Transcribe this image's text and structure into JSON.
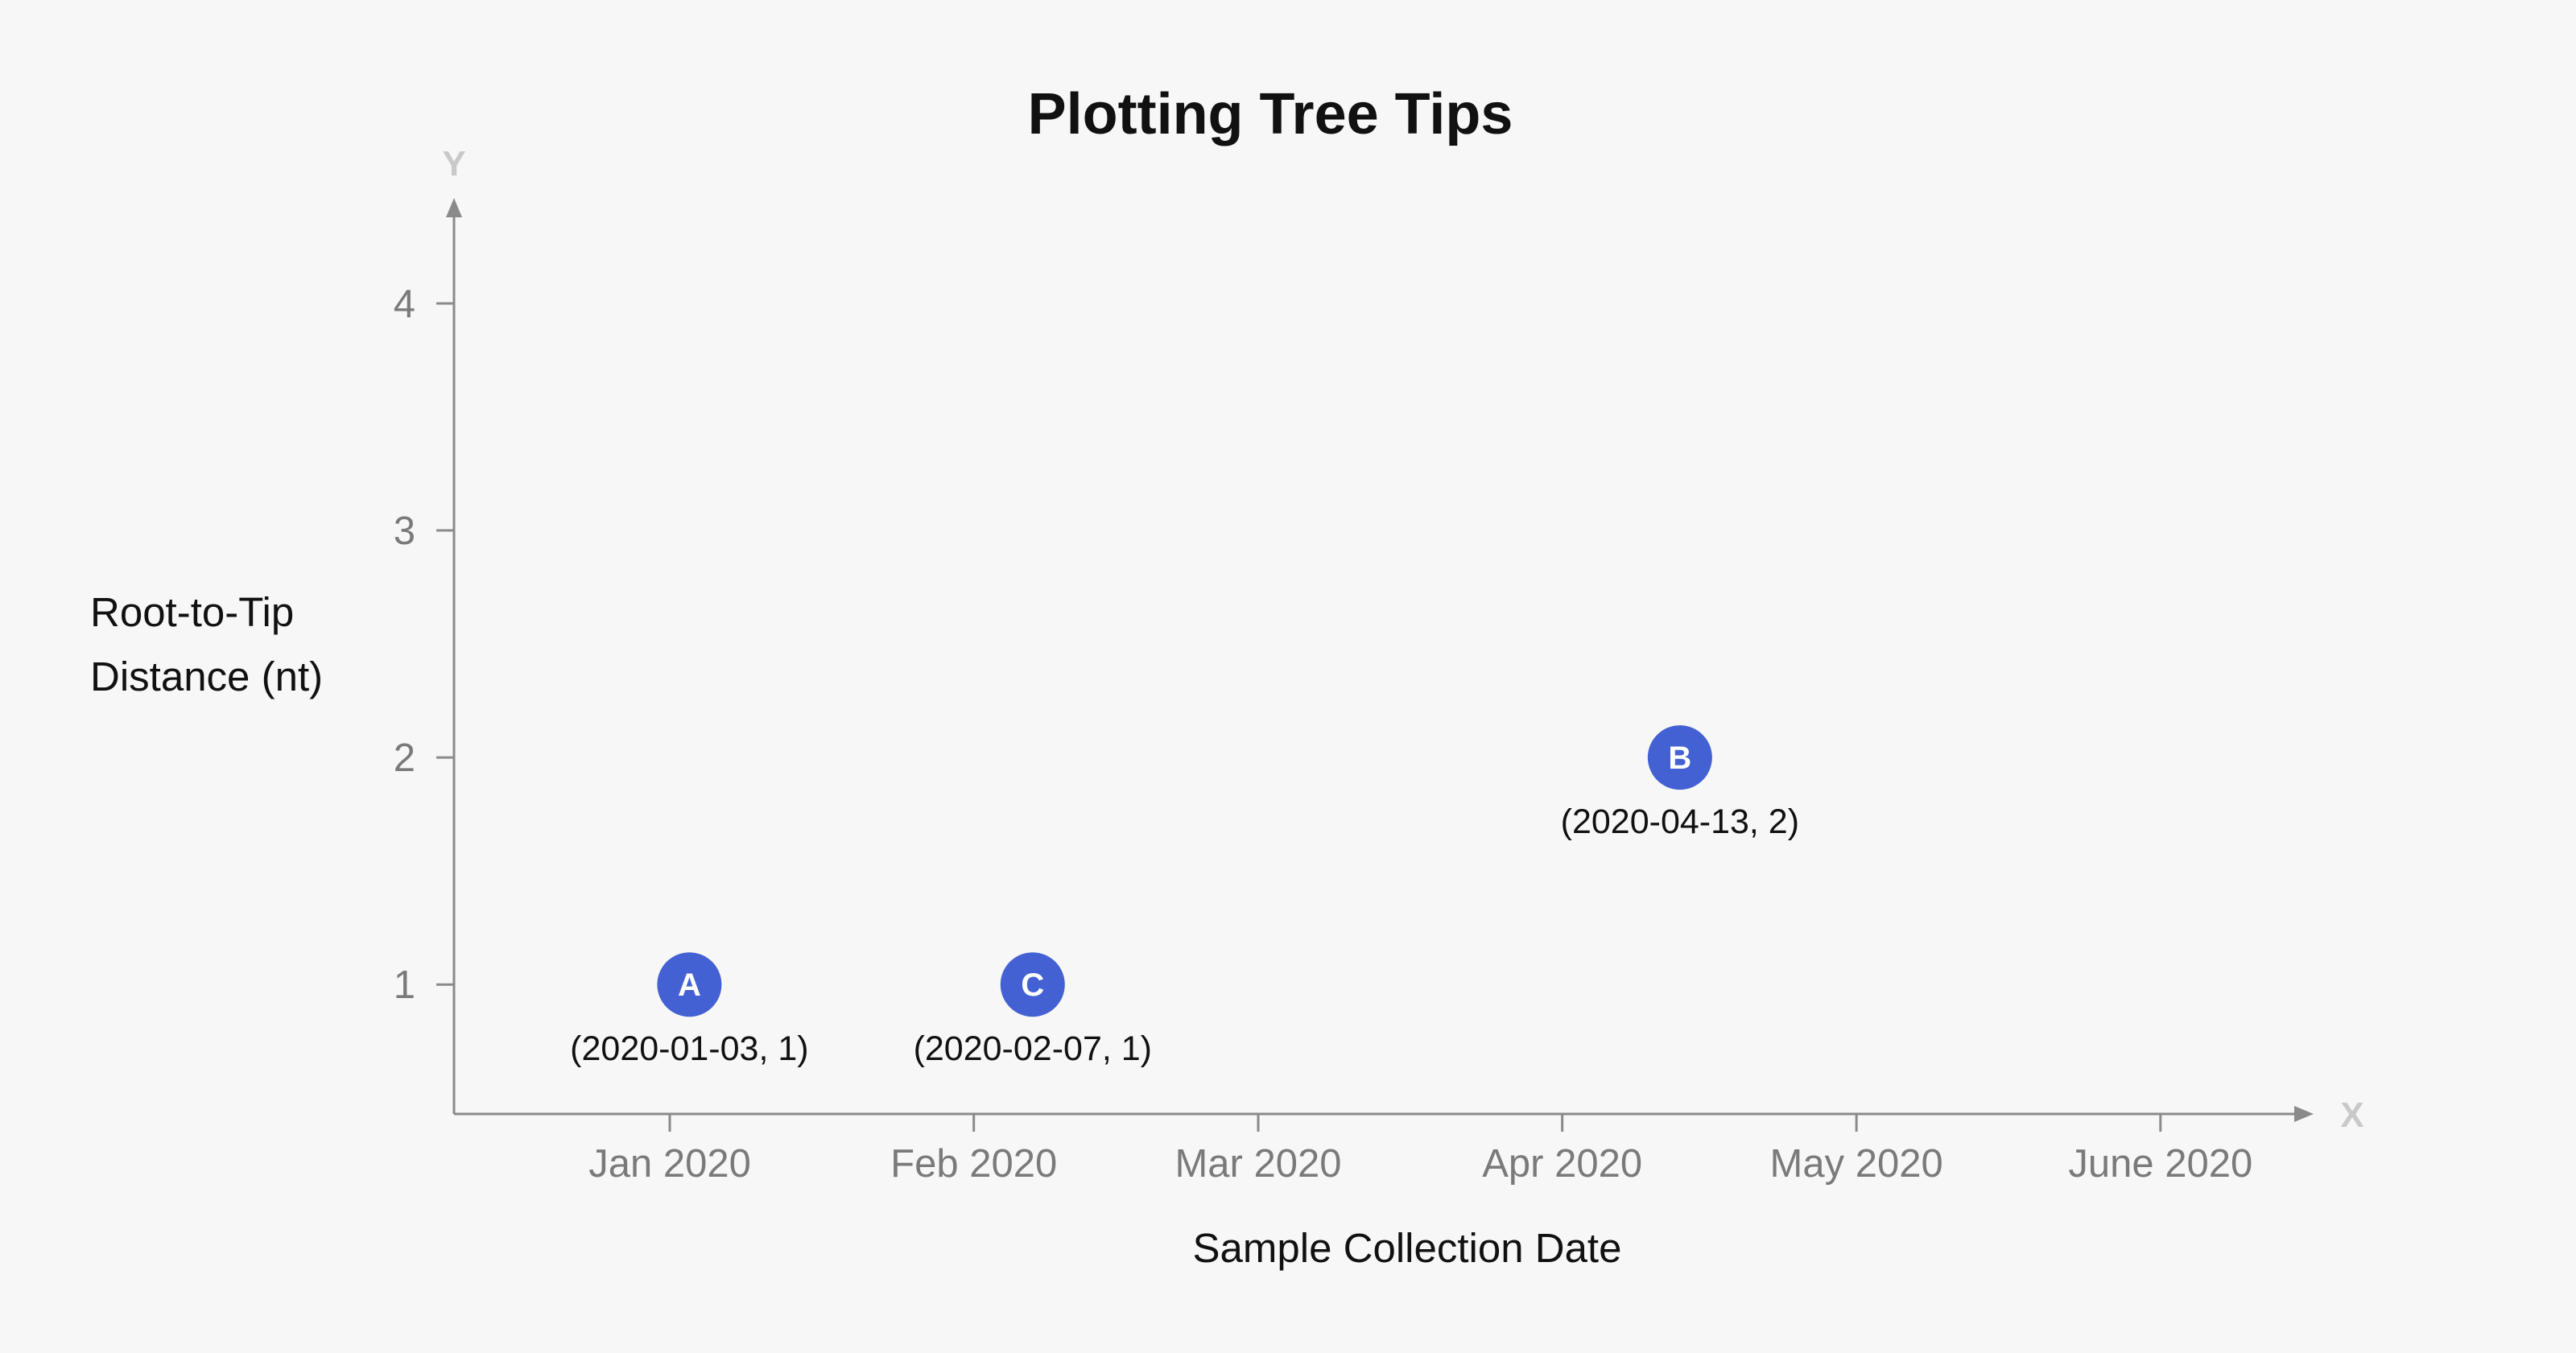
{
  "chart_data": {
    "type": "scatter",
    "title": "Plotting Tree Tips",
    "xlabel": "Sample Collection Date",
    "ylabel": [
      "Root-to-Tip",
      "Distance (nt)"
    ],
    "x_axis_letter": "X",
    "y_axis_letter": "Y",
    "x_ticks": [
      {
        "date": "2020-01-01",
        "label": "Jan 2020"
      },
      {
        "date": "2020-02-01",
        "label": "Feb 2020"
      },
      {
        "date": "2020-03-01",
        "label": "Mar 2020"
      },
      {
        "date": "2020-04-01",
        "label": "Apr 2020"
      },
      {
        "date": "2020-05-01",
        "label": "May 2020"
      },
      {
        "date": "2020-06-01",
        "label": "June 2020"
      }
    ],
    "y_ticks": [
      1,
      2,
      3,
      4
    ],
    "xlim": [
      "2019-12-10",
      "2020-06-13"
    ],
    "ylim": [
      0.43,
      4.45
    ],
    "grid": false,
    "point_color": "#4361d3",
    "points": [
      {
        "id": "A",
        "x": "2020-01-03",
        "y": 1,
        "label": "(2020-01-03, 1)"
      },
      {
        "id": "C",
        "x": "2020-02-07",
        "y": 1,
        "label": "(2020-02-07, 1)"
      },
      {
        "id": "B",
        "x": "2020-04-13",
        "y": 2,
        "label": "(2020-04-13, 2)"
      }
    ]
  }
}
